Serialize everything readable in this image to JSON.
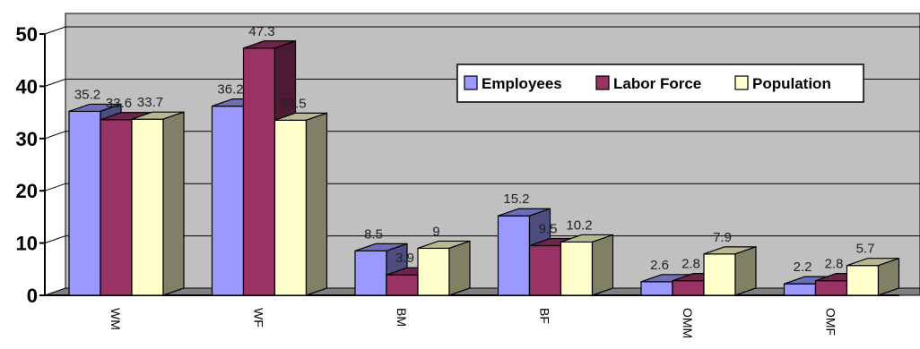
{
  "chart_data": {
    "type": "bar",
    "title": "",
    "xlabel": "",
    "ylabel": "",
    "categories": [
      "WM",
      "WF",
      "BM",
      "BF",
      "OMM",
      "OMF"
    ],
    "series": [
      {
        "name": "Employees",
        "values": [
          35.2,
          36.2,
          8.5,
          15.2,
          2.6,
          2.2
        ],
        "color": "#9999FF"
      },
      {
        "name": "Labor Force",
        "values": [
          33.6,
          47.3,
          3.9,
          9.5,
          2.8,
          2.8
        ],
        "color": "#993366"
      },
      {
        "name": "Population",
        "values": [
          33.7,
          33.5,
          9,
          10.2,
          7.9,
          5.7
        ],
        "color": "#FFFFCC"
      }
    ],
    "ylim": [
      0,
      50
    ],
    "yticks": [
      "0",
      "10",
      "20",
      "30",
      "40",
      "50"
    ],
    "grid": true,
    "legend_position": "top-right",
    "style": "3d-clustered-column"
  }
}
